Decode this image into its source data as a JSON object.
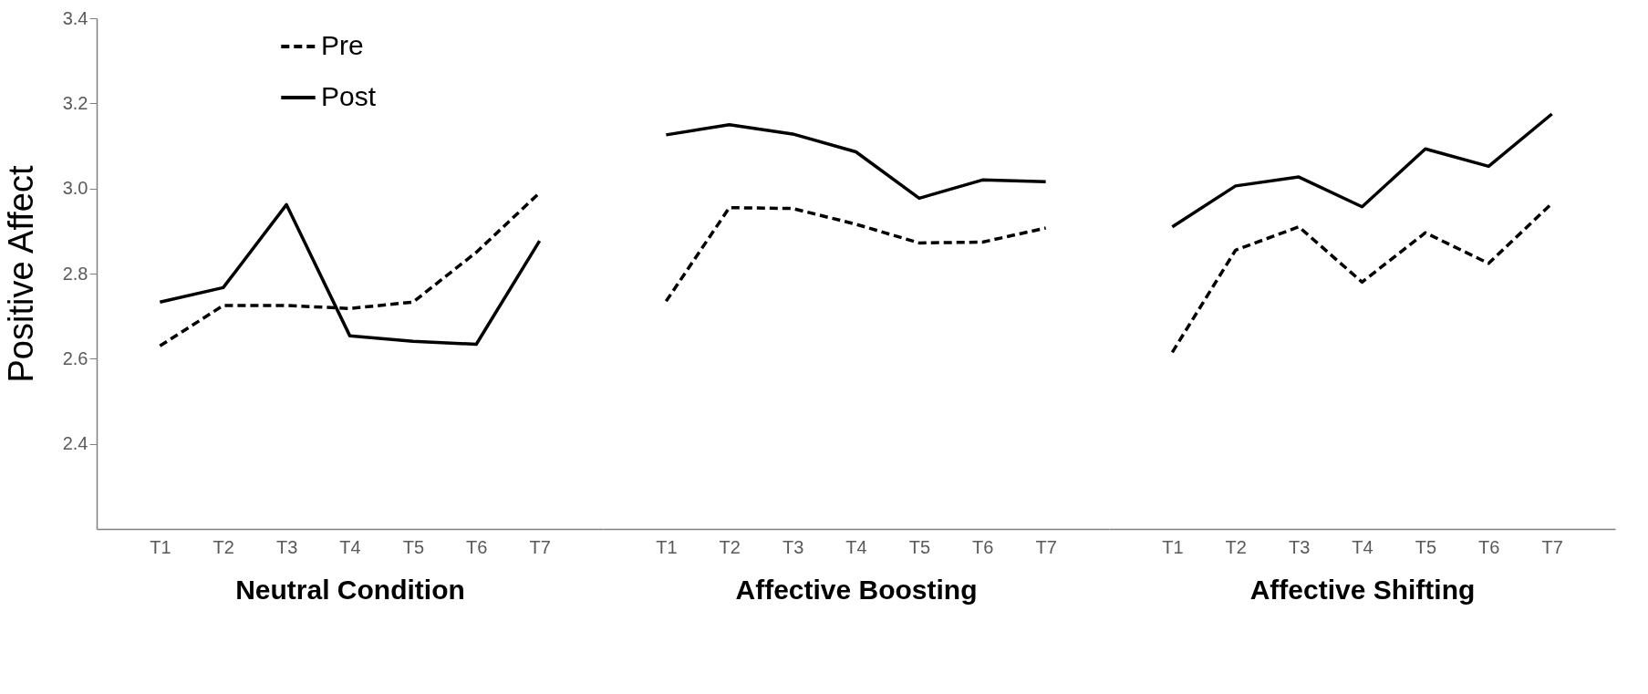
{
  "chart_data": [
    {
      "type": "line",
      "categories": [
        "T1",
        "T2",
        "T3",
        "T4",
        "T5",
        "T6",
        "T7"
      ],
      "xlabel": "Neutral Condition",
      "ylabel": "Positive Affect",
      "ylim": [
        2.2,
        3.4
      ],
      "yticks": [
        2.4,
        2.6,
        2.8,
        {
          "value": 3,
          "label": "3.0"
        },
        3.2,
        3.4
      ],
      "legend": "top",
      "series": [
        {
          "name": "Pre",
          "color": "#000000",
          "line_style": "dashed",
          "values": [
            2.63,
            2.725,
            2.725,
            2.718,
            2.733,
            2.85,
            2.99
          ]
        },
        {
          "name": "Post",
          "color": "#000000",
          "line_style": "solid",
          "values": [
            2.733,
            2.767,
            2.962,
            2.654,
            2.641,
            2.634,
            2.877
          ]
        }
      ]
    },
    {
      "type": "line",
      "categories": [
        "T1",
        "T2",
        "T3",
        "T4",
        "T5",
        "T6",
        "T7"
      ],
      "xlabel": "Affective Boosting",
      "ylim": [
        2.2,
        3.4
      ],
      "tick_labels": "x",
      "series": [
        {
          "name": "Pre",
          "color": "#000000",
          "line_style": "dashed",
          "values": [
            2.735,
            2.955,
            2.953,
            2.916,
            2.872,
            2.874,
            2.907
          ]
        },
        {
          "name": "Post",
          "color": "#000000",
          "line_style": "solid",
          "values": [
            3.126,
            3.15,
            3.128,
            3.086,
            2.977,
            3.02,
            3.016
          ]
        }
      ]
    },
    {
      "type": "line",
      "categories": [
        "T1",
        "T2",
        "T3",
        "T4",
        "T5",
        "T6",
        "T7"
      ],
      "xlabel": "Affective Shifting",
      "ylim": [
        2.2,
        3.4
      ],
      "tick_labels": "x",
      "series": [
        {
          "name": "Pre",
          "color": "#000000",
          "line_style": "dashed",
          "values": [
            2.615,
            2.855,
            2.91,
            2.78,
            2.896,
            2.824,
            2.965
          ]
        },
        {
          "name": "Post",
          "color": "#000000",
          "line_style": "solid",
          "values": [
            2.91,
            3.006,
            3.027,
            2.957,
            3.093,
            3.052,
            3.175
          ]
        }
      ]
    }
  ]
}
